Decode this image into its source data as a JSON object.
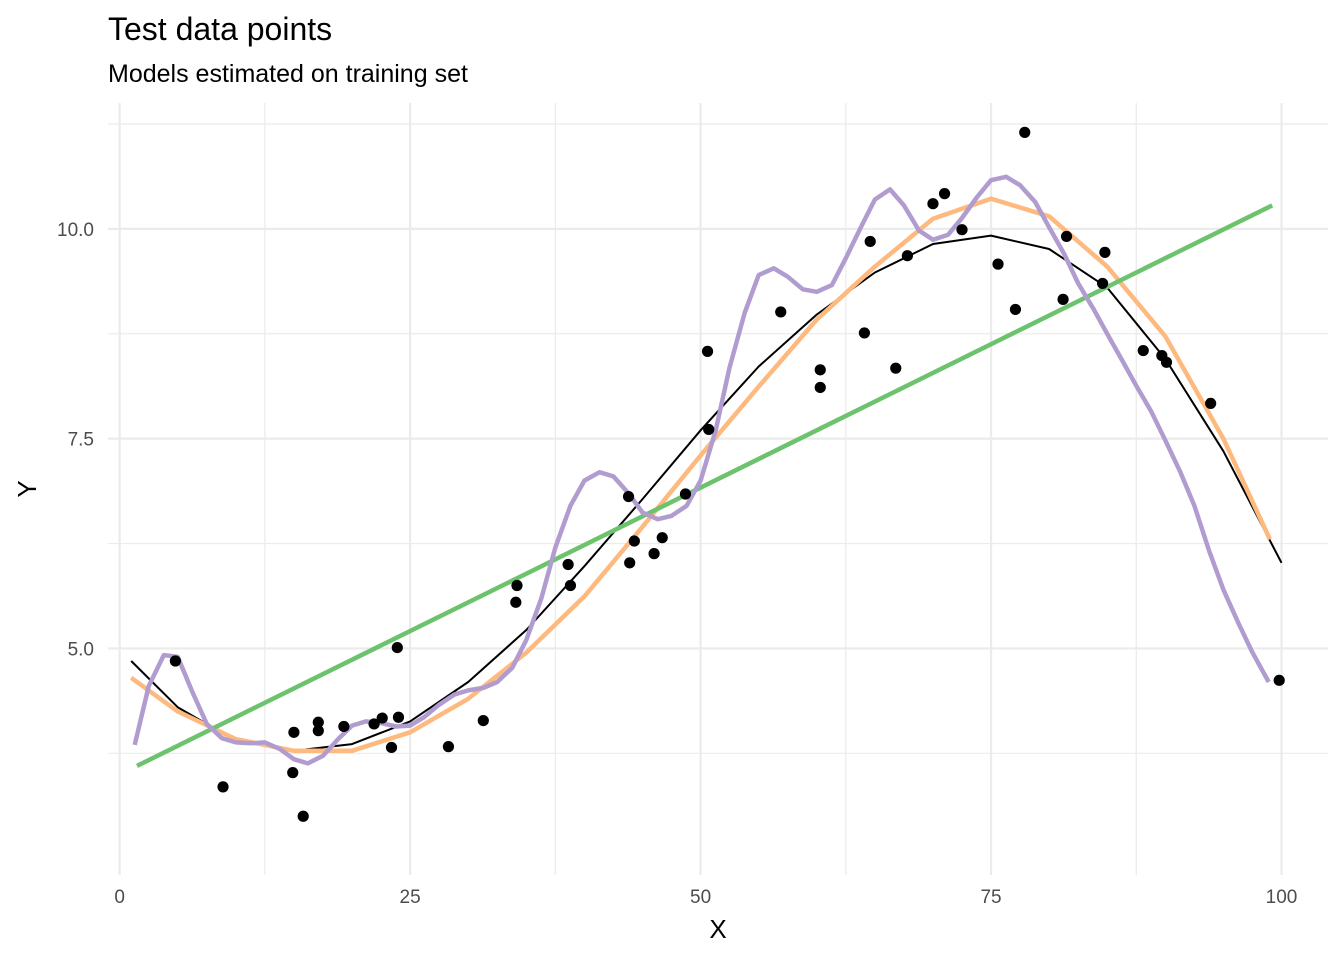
{
  "chart_data": {
    "type": "scatter",
    "title": "Test data points",
    "subtitle": "Models estimated on training set",
    "xlabel": "X",
    "ylabel": "Y",
    "xlim": [
      -1,
      104
    ],
    "ylim": [
      2.3,
      11.5
    ],
    "x_ticks": [
      0,
      25,
      50,
      75,
      100
    ],
    "x_tick_labels": [
      "0",
      "25",
      "50",
      "75",
      "100"
    ],
    "y_ticks": [
      5.0,
      7.5,
      10.0
    ],
    "y_tick_labels": [
      "5.0",
      "7.5",
      "10.0"
    ],
    "grid": true,
    "legend": "none",
    "points": {
      "color": "#000000",
      "x": [
        4.8,
        8.9,
        14.9,
        15.0,
        15.8,
        17.1,
        17.1,
        19.3,
        21.9,
        22.6,
        23.4,
        23.9,
        24.0,
        28.3,
        31.3,
        34.1,
        34.2,
        38.6,
        38.8,
        43.8,
        43.9,
        44.3,
        46.0,
        46.7,
        48.7,
        50.6,
        50.7,
        56.9,
        60.3,
        60.3,
        64.1,
        64.6,
        66.8,
        67.8,
        70.0,
        71.0,
        72.5,
        75.6,
        77.1,
        77.9,
        81.2,
        81.5,
        84.6,
        84.8,
        88.1,
        89.7,
        90.1,
        93.9,
        99.8
      ],
      "y": [
        4.85,
        3.35,
        3.52,
        4.0,
        3.0,
        4.12,
        4.02,
        4.07,
        4.1,
        4.17,
        3.82,
        5.01,
        4.18,
        3.83,
        4.14,
        5.55,
        5.75,
        6.0,
        5.75,
        6.81,
        6.02,
        6.28,
        6.13,
        6.32,
        6.84,
        8.54,
        7.61,
        9.01,
        8.32,
        8.11,
        8.76,
        9.85,
        8.34,
        9.68,
        10.3,
        10.42,
        9.99,
        9.58,
        9.04,
        11.15,
        9.16,
        9.91,
        9.35,
        9.72,
        8.55,
        8.49,
        8.41,
        7.92,
        4.62
      ]
    },
    "series": [
      {
        "color": "#000000",
        "width": 2,
        "x": [
          1,
          5,
          10,
          15,
          20,
          25,
          30,
          35,
          40,
          45,
          50,
          55,
          60,
          65,
          70,
          75,
          80,
          85,
          90,
          95,
          100
        ],
        "y": [
          4.85,
          4.3,
          3.9,
          3.78,
          3.86,
          4.13,
          4.6,
          5.22,
          5.98,
          6.78,
          7.6,
          8.36,
          8.98,
          9.48,
          9.82,
          9.92,
          9.76,
          9.3,
          8.45,
          7.35,
          6.02
        ]
      },
      {
        "color": "#fdb97e",
        "width": 4.5,
        "x": [
          1,
          5,
          10,
          15,
          20,
          25,
          30,
          35,
          40,
          45,
          50,
          55,
          60,
          65,
          70,
          75,
          80,
          85,
          90,
          95,
          99
        ],
        "y": [
          4.65,
          4.25,
          3.92,
          3.78,
          3.78,
          4.0,
          4.4,
          4.95,
          5.62,
          6.45,
          7.3,
          8.12,
          8.92,
          9.55,
          10.12,
          10.36,
          10.15,
          9.55,
          8.72,
          7.5,
          6.3
        ]
      },
      {
        "color": "#6dc36d",
        "width": 4.5,
        "x": [
          1.5,
          99.2
        ],
        "y": [
          3.6,
          10.28
        ]
      },
      {
        "color": "#b19cd0",
        "width": 4.5,
        "x": [
          1.3,
          2.5,
          3.8,
          5,
          6.2,
          7.5,
          8.8,
          10,
          11.3,
          12.5,
          13.8,
          15,
          16.2,
          17.5,
          18.8,
          20,
          21.2,
          22.5,
          23.8,
          25,
          26.2,
          27.5,
          28.8,
          30,
          31.3,
          32.5,
          33.8,
          35,
          36.3,
          37.5,
          38.8,
          40,
          41.3,
          42.5,
          43.8,
          45,
          46.3,
          47.5,
          48.8,
          50,
          51.3,
          52.5,
          53.8,
          55,
          56.3,
          57.5,
          58.8,
          60,
          61.3,
          62.5,
          63.8,
          65,
          66.3,
          67.5,
          68.8,
          70,
          71.3,
          72.5,
          73.8,
          75,
          76.3,
          77.5,
          78.8,
          80,
          81.3,
          82.5,
          83.8,
          85,
          86.3,
          87.5,
          88.8,
          90,
          91.3,
          92.5,
          93.8,
          95,
          96.3,
          97.5,
          98.9
        ],
        "y": [
          3.85,
          4.55,
          4.92,
          4.9,
          4.5,
          4.1,
          3.93,
          3.88,
          3.87,
          3.88,
          3.8,
          3.68,
          3.63,
          3.72,
          3.92,
          4.08,
          4.13,
          4.11,
          4.07,
          4.08,
          4.18,
          4.33,
          4.45,
          4.5,
          4.53,
          4.6,
          4.77,
          5.1,
          5.6,
          6.2,
          6.7,
          7.0,
          7.1,
          7.05,
          6.85,
          6.62,
          6.54,
          6.58,
          6.7,
          7.0,
          7.6,
          8.35,
          9.0,
          9.45,
          9.53,
          9.43,
          9.28,
          9.25,
          9.33,
          9.65,
          10.02,
          10.35,
          10.47,
          10.28,
          9.98,
          9.87,
          9.93,
          10.13,
          10.38,
          10.58,
          10.62,
          10.52,
          10.32,
          10.02,
          9.7,
          9.35,
          9.05,
          8.75,
          8.43,
          8.13,
          7.82,
          7.48,
          7.1,
          6.7,
          6.15,
          5.7,
          5.3,
          4.95,
          4.6
        ]
      }
    ]
  }
}
